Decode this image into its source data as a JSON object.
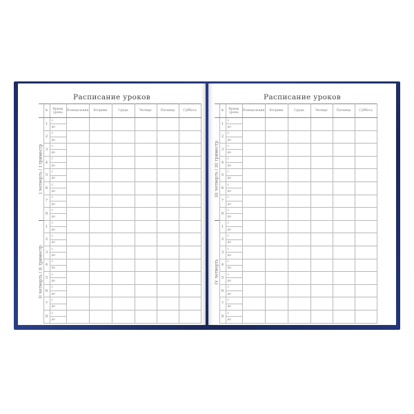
{
  "pages": [
    {
      "title": "Расписание уроков",
      "sections": [
        "I четверть / I триместр",
        "II четверть / II триместр"
      ]
    },
    {
      "title": "Расписание уроков",
      "sections": [
        "III четверть / III триместр",
        "IV четверть"
      ]
    }
  ],
  "headers": {
    "num": "№",
    "time": "Время урока",
    "days": [
      "Понедельник",
      "Вторник",
      "Среда",
      "Четверг",
      "Пятница",
      "Суббота"
    ]
  },
  "lessons": [
    "1",
    "2",
    "3",
    "4",
    "5",
    "6",
    "7",
    "8"
  ],
  "time_from": "с",
  "time_to": "до",
  "colors": {
    "cover": "#1d2c63",
    "page": "#ffffff",
    "grid": "#b8b8b8"
  }
}
